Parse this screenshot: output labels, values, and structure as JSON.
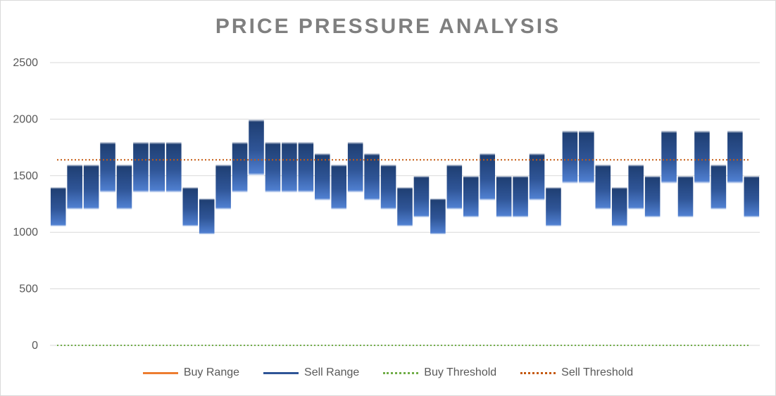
{
  "chart_data": {
    "type": "bar",
    "title": "PRICE PRESSURE ANALYSIS",
    "xlabel": "",
    "ylabel": "",
    "ylim": [
      0,
      2500
    ],
    "yticks": [
      0,
      500,
      1000,
      1500,
      2000,
      2500
    ],
    "grid": true,
    "legend_placement": "bottom",
    "colors": {
      "buy_range": "#ed7d31",
      "sell_range_top": "#1f3f73",
      "sell_range_bottom": "#4472c4",
      "buy_threshold": "#70ad47",
      "sell_threshold": "#c55a11",
      "grid": "#d9d9d9"
    },
    "series": [
      {
        "name": "Sell Range",
        "style": "floating-bar",
        "low": [
          1050,
          1200,
          1200,
          1350,
          1200,
          1350,
          1350,
          1350,
          1050,
          980,
          1200,
          1350,
          1500,
          1350,
          1350,
          1350,
          1280,
          1200,
          1350,
          1280,
          1200,
          1050,
          1130,
          980,
          1200,
          1130,
          1280,
          1130,
          1130,
          1280,
          1050,
          1430,
          1430,
          1200,
          1050,
          1200,
          1130,
          1430,
          1130,
          1430,
          1200,
          1430,
          1130
        ],
        "high": [
          1400,
          1600,
          1600,
          1800,
          1600,
          1800,
          1800,
          1800,
          1400,
          1300,
          1600,
          1800,
          2000,
          1800,
          1800,
          1800,
          1700,
          1600,
          1800,
          1700,
          1600,
          1400,
          1500,
          1300,
          1600,
          1500,
          1700,
          1500,
          1500,
          1700,
          1400,
          1900,
          1900,
          1600,
          1400,
          1600,
          1500,
          1900,
          1500,
          1900,
          1600,
          1900,
          1500
        ]
      },
      {
        "name": "Buy Range",
        "style": "line",
        "values": []
      },
      {
        "name": "Buy Threshold",
        "style": "dotted-line",
        "value": 0
      },
      {
        "name": "Sell Threshold",
        "style": "dotted-line",
        "value": 1640
      }
    ],
    "legend": [
      "Buy Range",
      "Sell Range",
      "Buy Threshold",
      "Sell Threshold"
    ]
  }
}
